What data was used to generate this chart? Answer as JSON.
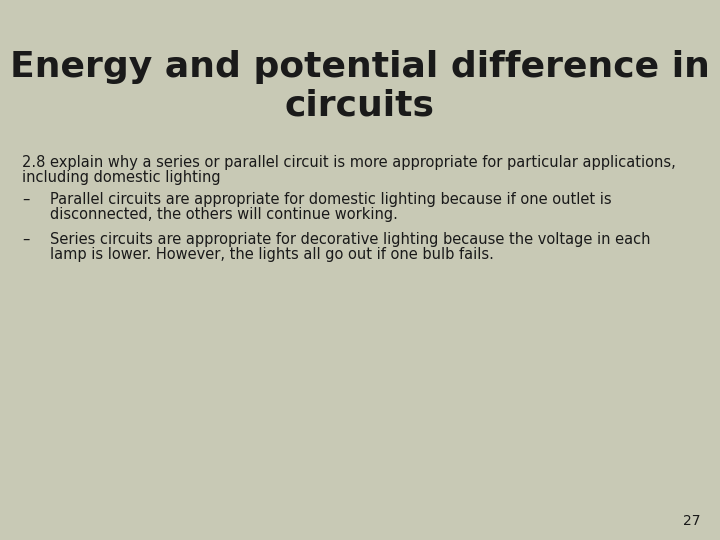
{
  "title_line1": "Energy and potential difference in",
  "title_line2": "circuits",
  "background_color": "#c8c9b5",
  "text_color": "#1a1a1a",
  "title_fontsize": 26,
  "body_fontsize": 10.5,
  "page_number": "27",
  "intro_line1": "2.8 explain why a series or parallel circuit is more appropriate for particular applications,",
  "intro_line2": "including domestic lighting",
  "bullet1_dash": "–",
  "bullet1_line1": "Parallel circuits are appropriate for domestic lighting because if one outlet is",
  "bullet1_line2": "disconnected, the others will continue working.",
  "bullet2_dash": "–",
  "bullet2_line1": "Series circuits are appropriate for decorative lighting because the voltage in each",
  "bullet2_line2": "lamp is lower. However, the lights all go out if one bulb fails."
}
